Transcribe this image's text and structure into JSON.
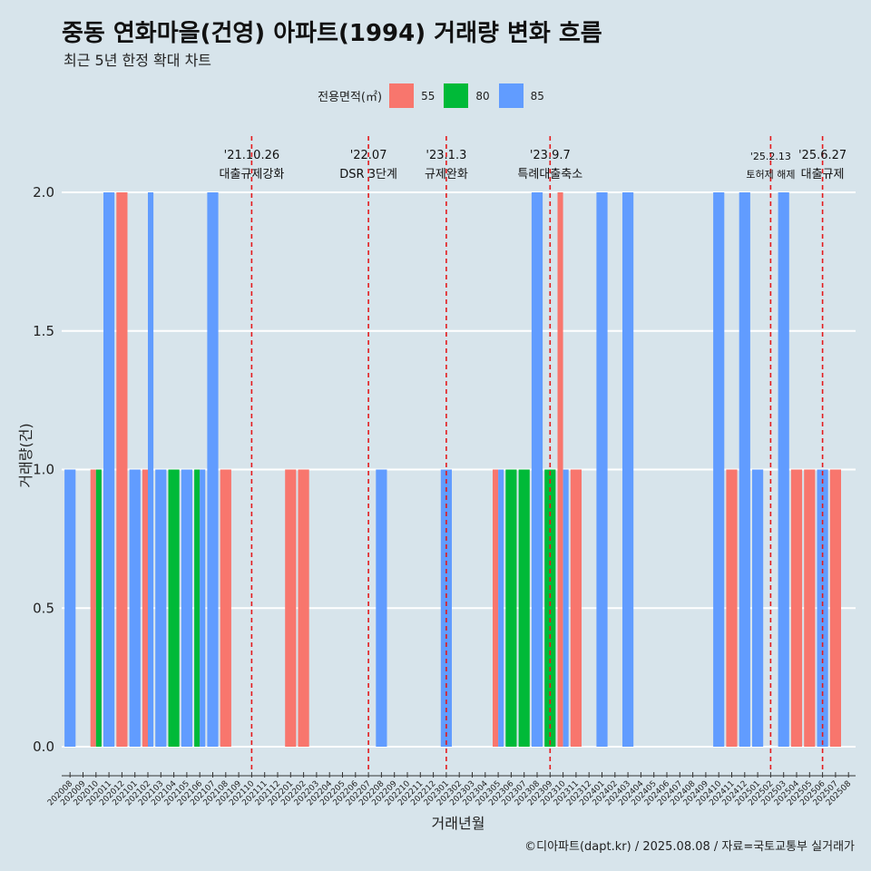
{
  "header": {
    "title": "중동 연화마을(건영) 아파트(1994) 거래량 변화 흐름",
    "subtitle": "최근 5년 한정 확대 차트"
  },
  "legend": {
    "title": "전용면적(㎡)",
    "items": [
      {
        "label": "55",
        "color": "#f8766d"
      },
      {
        "label": "80",
        "color": "#00ba38"
      },
      {
        "label": "85",
        "color": "#619cff"
      }
    ]
  },
  "caption": "©디아파트(dapt.kr) / 2025.08.08 / 자료=국토교통부 실거래가",
  "chart_data": {
    "type": "bar",
    "xlabel": "거래년월",
    "ylabel": "거래량(건)",
    "ylim": [
      0,
      2
    ],
    "yticks": [
      "0.0",
      "0.5",
      "1.0",
      "1.5",
      "2.0"
    ],
    "grid": true,
    "legend_position": "top",
    "categories": [
      "202008",
      "202009",
      "202010",
      "202011",
      "202012",
      "202101",
      "202102",
      "202103",
      "202104",
      "202105",
      "202106",
      "202107",
      "202108",
      "202109",
      "202110",
      "202111",
      "202112",
      "202201",
      "202202",
      "202203",
      "202204",
      "202205",
      "202206",
      "202207",
      "202208",
      "202209",
      "202210",
      "202211",
      "202212",
      "202301",
      "202302",
      "202303",
      "202304",
      "202305",
      "202306",
      "202307",
      "202308",
      "202309",
      "202310",
      "202311",
      "202312",
      "202401",
      "202402",
      "202403",
      "202404",
      "202405",
      "202406",
      "202407",
      "202408",
      "202409",
      "202410",
      "202411",
      "202412",
      "202501",
      "202502",
      "202503",
      "202504",
      "202505",
      "202506",
      "202507",
      "202508"
    ],
    "series": [
      {
        "name": "55",
        "color": "#f8766d",
        "values": [
          0,
          0,
          1,
          0,
          2,
          0,
          1,
          0,
          0,
          0,
          0,
          0,
          1,
          0,
          0,
          0,
          0,
          1,
          1,
          0,
          0,
          0,
          0,
          0,
          0,
          0,
          0,
          0,
          0,
          0,
          0,
          0,
          0,
          1,
          0,
          0,
          0,
          0,
          2,
          1,
          0,
          0,
          0,
          0,
          0,
          0,
          0,
          0,
          0,
          0,
          0,
          1,
          0,
          0,
          0,
          0,
          1,
          1,
          0,
          1,
          0
        ]
      },
      {
        "name": "80",
        "color": "#00ba38",
        "values": [
          0,
          0,
          1,
          0,
          0,
          0,
          0,
          0,
          1,
          0,
          1,
          0,
          0,
          0,
          0,
          0,
          0,
          0,
          0,
          0,
          0,
          0,
          0,
          0,
          0,
          0,
          0,
          0,
          0,
          0,
          0,
          0,
          0,
          0,
          1,
          1,
          0,
          1,
          0,
          0,
          0,
          0,
          0,
          0,
          0,
          0,
          0,
          0,
          0,
          0,
          0,
          0,
          0,
          0,
          0,
          0,
          0,
          0,
          0,
          0,
          0
        ]
      },
      {
        "name": "85",
        "color": "#619cff",
        "values": [
          1,
          0,
          0,
          2,
          0,
          1,
          2,
          1,
          0,
          1,
          1,
          2,
          0,
          0,
          0,
          0,
          0,
          0,
          0,
          0,
          0,
          0,
          0,
          0,
          1,
          0,
          0,
          0,
          0,
          1,
          0,
          0,
          0,
          1,
          0,
          0,
          2,
          0,
          1,
          0,
          0,
          2,
          0,
          2,
          0,
          0,
          0,
          0,
          0,
          0,
          2,
          0,
          2,
          1,
          0,
          2,
          0,
          0,
          1,
          0,
          0
        ]
      }
    ],
    "annotations": [
      {
        "date": "'21.10.26",
        "label": "대출규제강화",
        "x": "202110"
      },
      {
        "date": "'22.07",
        "label": "DSR 3단계",
        "x": "202207"
      },
      {
        "date": "'23.1.3",
        "label": "규제완화",
        "x": "202301"
      },
      {
        "date": "'23.9.7",
        "label": "특례대출축소",
        "x": "202309"
      },
      {
        "date": "'25.2.13",
        "label": "토허제 해제",
        "x": "202502"
      },
      {
        "date": "'25.6.27",
        "label": "대출규제",
        "x": "202506"
      }
    ]
  }
}
